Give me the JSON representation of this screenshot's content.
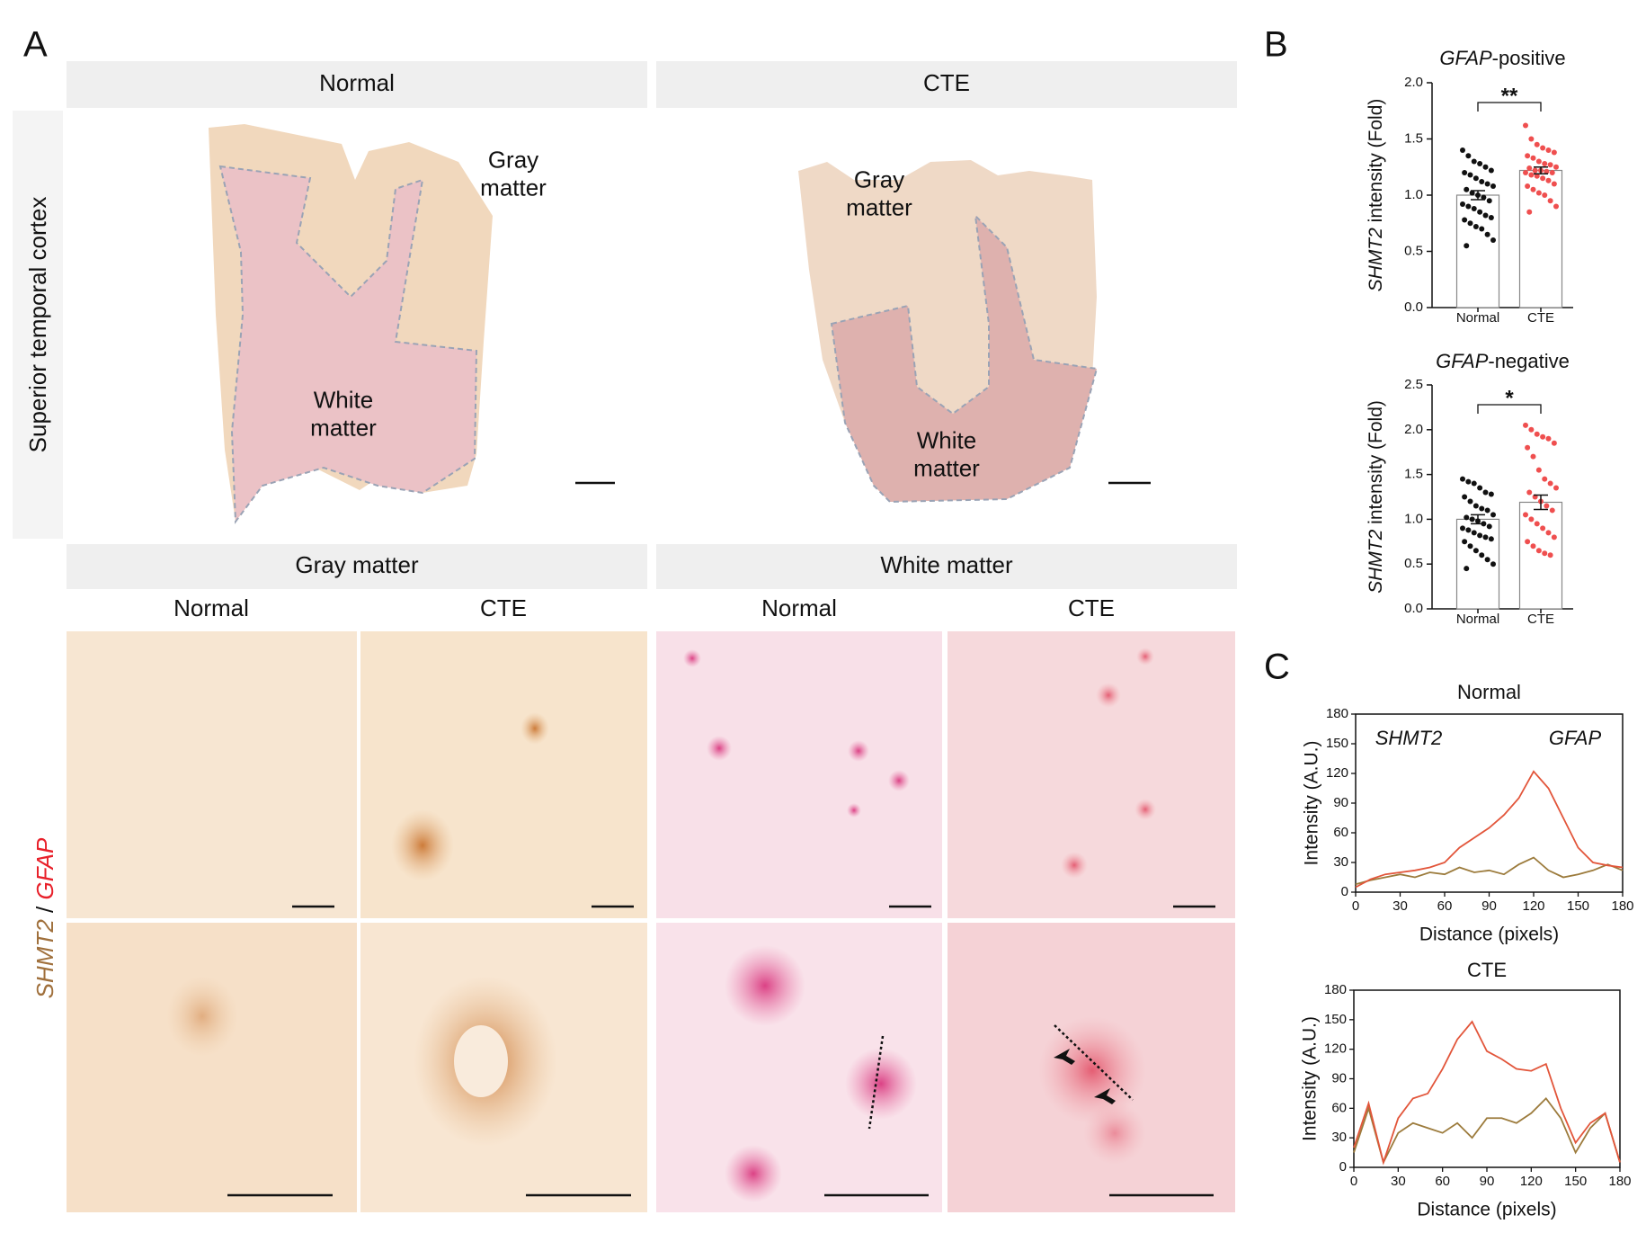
{
  "figure": {
    "panel_labels": [
      "A",
      "B",
      "C"
    ],
    "row_label": "Superior temporal cortex",
    "top_headers": [
      "Normal",
      "CTE"
    ],
    "region_labels": {
      "normal_gray": "Gray matter",
      "normal_white": "White matter",
      "cte_gray": "Gray matter",
      "cte_white": "White matter"
    },
    "mid_headers": [
      "Gray matter",
      "White matter"
    ],
    "sub_headers": [
      "Normal",
      "CTE",
      "Normal",
      "CTE"
    ],
    "stain_label": [
      "SHMT2",
      "/",
      "GFAP"
    ]
  },
  "chart_data": [
    {
      "type": "bar",
      "title": "GFAP-positive",
      "y_label": "SHMT2 intensity (Fold)",
      "categories": [
        "Normal",
        "CTE"
      ],
      "values": [
        1.0,
        1.22
      ],
      "errors": [
        0.04,
        0.03
      ],
      "point_colors": [
        "#111111",
        "#ef4f4f"
      ],
      "points": [
        [
          1.4,
          1.35,
          1.3,
          1.28,
          1.25,
          1.22,
          1.2,
          1.18,
          1.15,
          1.12,
          1.1,
          1.08,
          1.05,
          1.02,
          1.0,
          0.98,
          0.95,
          0.92,
          0.9,
          0.88,
          0.85,
          0.82,
          0.8,
          0.78,
          0.75,
          0.72,
          0.7,
          0.65,
          0.6,
          0.55
        ],
        [
          1.62,
          1.5,
          1.45,
          1.42,
          1.4,
          1.38,
          1.35,
          1.33,
          1.3,
          1.28,
          1.27,
          1.25,
          1.24,
          1.22,
          1.22,
          1.21,
          1.2,
          1.2,
          1.18,
          1.17,
          1.15,
          1.13,
          1.1,
          1.08,
          1.05,
          1.02,
          1.0,
          0.95,
          0.9,
          0.85
        ]
      ],
      "annotation": "**",
      "ylim": [
        0,
        2
      ],
      "yticks": [
        {
          "value": 0,
          "label": "0.0"
        },
        {
          "value": 0.5,
          "label": "0.5"
        },
        {
          "value": 1,
          "label": "1.0"
        },
        {
          "value": 1.5,
          "label": "1.5"
        },
        {
          "value": 2,
          "label": "2.0"
        }
      ]
    },
    {
      "type": "bar",
      "title": "GFAP-negative",
      "y_label": "SHMT2 intensity (Fold)",
      "categories": [
        "Normal",
        "CTE"
      ],
      "values": [
        1.0,
        1.19
      ],
      "errors": [
        0.05,
        0.08
      ],
      "point_colors": [
        "#111111",
        "#ef4f4f"
      ],
      "points": [
        [
          1.45,
          1.42,
          1.4,
          1.35,
          1.3,
          1.28,
          1.25,
          1.2,
          1.15,
          1.12,
          1.1,
          1.05,
          1.02,
          1.0,
          0.98,
          0.95,
          0.92,
          0.9,
          0.88,
          0.85,
          0.82,
          0.8,
          0.78,
          0.75,
          0.7,
          0.65,
          0.6,
          0.55,
          0.5,
          0.45
        ],
        [
          2.05,
          2.0,
          1.95,
          1.92,
          1.9,
          1.85,
          1.8,
          1.7,
          1.55,
          1.45,
          1.4,
          1.35,
          1.3,
          1.25,
          1.2,
          1.15,
          1.1,
          1.05,
          1.0,
          0.95,
          0.9,
          0.85,
          0.8,
          0.75,
          0.7,
          0.65,
          0.62,
          0.6
        ]
      ],
      "annotation": "*",
      "ylim": [
        0,
        2.5
      ],
      "yticks": [
        {
          "value": 0,
          "label": "0.0"
        },
        {
          "value": 0.5,
          "label": "0.5"
        },
        {
          "value": 1,
          "label": "1.0"
        },
        {
          "value": 1.5,
          "label": "1.5"
        },
        {
          "value": 2,
          "label": "2.0"
        },
        {
          "value": 2.5,
          "label": "2.5"
        }
      ]
    },
    {
      "type": "line",
      "title": "Normal",
      "x_label": "Distance (pixels)",
      "y_label": "Intensity (A.U.)",
      "x": [
        0,
        10,
        20,
        30,
        40,
        50,
        60,
        70,
        80,
        90,
        100,
        110,
        120,
        130,
        140,
        150,
        160,
        170,
        180
      ],
      "series": [
        {
          "name": "SHMT2",
          "color": "#9c7b3c",
          "values": [
            8,
            12,
            15,
            18,
            15,
            20,
            18,
            25,
            20,
            22,
            18,
            28,
            35,
            22,
            15,
            18,
            22,
            28,
            22
          ]
        },
        {
          "name": "GFAP",
          "color": "#e2553a",
          "values": [
            5,
            13,
            18,
            20,
            22,
            25,
            30,
            45,
            55,
            65,
            78,
            95,
            122,
            105,
            75,
            45,
            30,
            27,
            25
          ]
        }
      ],
      "xlim": [
        0,
        180
      ],
      "xticks": [
        0,
        30,
        60,
        90,
        120,
        150,
        180
      ],
      "ylim": [
        0,
        180
      ],
      "yticks": [
        0,
        30,
        60,
        90,
        120,
        150,
        180
      ]
    },
    {
      "type": "line",
      "title": "CTE",
      "x_label": "Distance (pixels)",
      "y_label": "Intensity (A.U.)",
      "x": [
        0,
        10,
        20,
        30,
        40,
        50,
        60,
        70,
        80,
        90,
        100,
        110,
        120,
        130,
        140,
        150,
        160,
        170,
        180
      ],
      "series": [
        {
          "name": "SHMT2",
          "color": "#9c7b3c",
          "values": [
            15,
            60,
            5,
            35,
            45,
            40,
            35,
            45,
            30,
            50,
            50,
            45,
            55,
            70,
            50,
            15,
            40,
            55,
            5
          ]
        },
        {
          "name": "GFAP",
          "color": "#e2553a",
          "values": [
            20,
            65,
            5,
            50,
            70,
            75,
            100,
            130,
            148,
            118,
            110,
            100,
            98,
            105,
            60,
            25,
            45,
            55,
            5
          ]
        }
      ],
      "xlim": [
        0,
        180
      ],
      "xticks": [
        0,
        30,
        60,
        90,
        120,
        150,
        180
      ],
      "ylim": [
        0,
        180
      ],
      "yticks": [
        0,
        30,
        60,
        90,
        120,
        150,
        180
      ]
    }
  ]
}
